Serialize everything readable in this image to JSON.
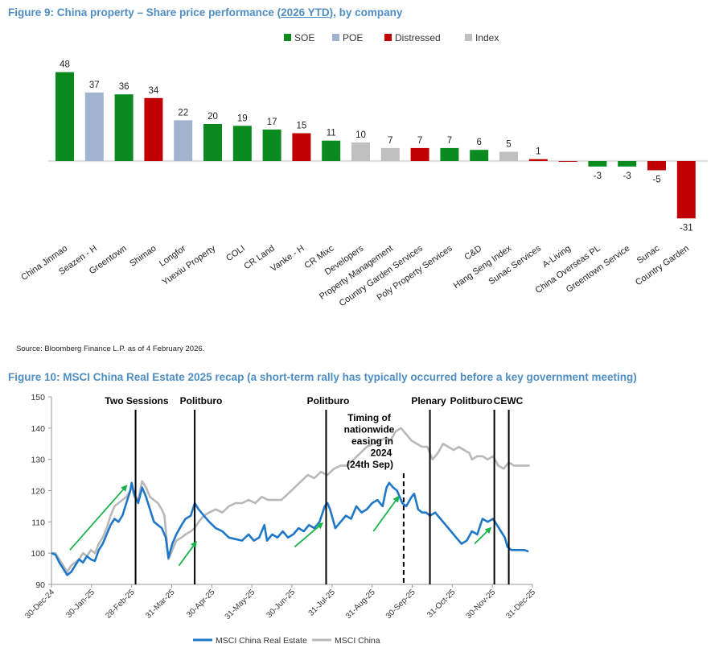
{
  "fig9": {
    "title_pre": "Figure 9: China property – Share price performance (",
    "title_ytd": "2026 YTD",
    "title_post": "), by company",
    "source": "Source: Bloomberg Finance L.P. as of 4 February 2026.",
    "colors": {
      "SOE": "#0a8a1f",
      "POE": "#a1b3cf",
      "Distressed": "#c00000",
      "Index": "#c0c0c0"
    }
  },
  "fig10": {
    "title": "Figure 10: MSCI China Real Estate 2025 recap (a short-term rally has typically occurred before a key government meeting)",
    "annotation_lines": [
      "Timing of",
      "nationwide",
      "easing in",
      "2024",
      "(24th Sep)"
    ]
  },
  "chart_data": [
    {
      "type": "bar",
      "title": "China property – Share price performance (2026 YTD), by company",
      "legend": [
        "SOE",
        "POE",
        "Distressed",
        "Index"
      ],
      "legend_position": "top",
      "categories": [
        "China Jinmao",
        "Seazen - H",
        "Greentown",
        "Shimao",
        "Longfor",
        "Yuexiu Property",
        "COLI",
        "CR Land",
        "Vanke - H",
        "CR Mixc",
        "Developers",
        "Property Management",
        "Country Garden Services",
        "Poly Property Services",
        "C&D",
        "Hang Seng Index",
        "Sunac Services",
        "A-Living",
        "China Overseas PL",
        "Greentown Service",
        "Sunac",
        "Country Garden"
      ],
      "labels": [
        "48",
        "37",
        "36",
        "34",
        "22",
        "20",
        "19",
        "17",
        "15",
        "11",
        "10",
        "7",
        "7",
        "7",
        "6",
        "5",
        "1",
        "",
        "-3",
        "-3",
        "-5",
        "-31"
      ],
      "values": [
        48,
        37,
        36,
        34,
        22,
        20,
        19,
        17,
        15,
        11,
        10,
        7,
        7,
        7,
        6,
        5,
        1,
        -0.4,
        -3,
        -3,
        -5,
        -31
      ],
      "groups": [
        "SOE",
        "POE",
        "SOE",
        "Distressed",
        "POE",
        "SOE",
        "SOE",
        "SOE",
        "Distressed",
        "SOE",
        "Index",
        "Index",
        "Distressed",
        "SOE",
        "SOE",
        "Index",
        "Distressed",
        "Distressed",
        "SOE",
        "SOE",
        "Distressed",
        "Distressed"
      ],
      "ylim": [
        -34,
        52
      ]
    },
    {
      "type": "line",
      "title": "MSCI China Real Estate 2025 recap",
      "x_ticks": [
        "30-Dec-24",
        "30-Jan-25",
        "28-Feb-25",
        "31-Mar-25",
        "30-Apr-25",
        "31-May-25",
        "30-Jun-25",
        "31-Jul-25",
        "31-Aug-25",
        "30-Sep-25",
        "31-Oct-25",
        "30-Nov-25",
        "31-Dec-25"
      ],
      "y_ticks": [
        "90",
        "100",
        "110",
        "120",
        "130",
        "140",
        "150"
      ],
      "ylim": [
        90,
        150
      ],
      "xlim": [
        0,
        366
      ],
      "series": [
        {
          "name": "MSCI China Real Estate",
          "color": "#1f77c8",
          "points": [
            [
              0,
              100
            ],
            [
              3,
              99.5
            ],
            [
              6,
              97
            ],
            [
              9,
              95
            ],
            [
              12,
              93
            ],
            [
              15,
              94
            ],
            [
              18,
              96
            ],
            [
              21,
              98
            ],
            [
              24,
              97
            ],
            [
              27,
              99
            ],
            [
              30,
              98
            ],
            [
              33,
              97.5
            ],
            [
              36,
              101
            ],
            [
              39,
              103
            ],
            [
              42,
              106
            ],
            [
              45,
              109
            ],
            [
              48,
              111
            ],
            [
              51,
              110
            ],
            [
              54,
              112
            ],
            [
              57,
              116
            ],
            [
              60,
              120
            ],
            [
              61,
              122.5
            ],
            [
              63,
              119
            ],
            [
              66,
              116
            ],
            [
              69,
              121
            ],
            [
              72,
              118
            ],
            [
              75,
              114
            ],
            [
              78,
              110
            ],
            [
              81,
              109
            ],
            [
              84,
              108
            ],
            [
              87,
              105
            ],
            [
              89,
              98.5
            ],
            [
              92,
              103
            ],
            [
              95,
              106
            ],
            [
              99,
              109
            ],
            [
              102,
              111
            ],
            [
              106,
              112
            ],
            [
              109,
              116
            ],
            [
              112,
              114
            ],
            [
              116,
              112
            ],
            [
              120,
              110
            ],
            [
              125,
              108
            ],
            [
              130,
              107
            ],
            [
              135,
              105
            ],
            [
              140,
              104.5
            ],
            [
              145,
              104
            ],
            [
              150,
              106
            ],
            [
              154,
              104
            ],
            [
              158,
              105
            ],
            [
              162,
              109
            ],
            [
              164,
              104
            ],
            [
              168,
              106
            ],
            [
              172,
              105
            ],
            [
              176,
              107
            ],
            [
              180,
              105
            ],
            [
              184,
              106
            ],
            [
              188,
              108
            ],
            [
              192,
              107
            ],
            [
              196,
              109
            ],
            [
              200,
              108
            ],
            [
              204,
              110
            ],
            [
              208,
              115
            ],
            [
              210,
              116
            ],
            [
              212,
              114
            ],
            [
              214,
              111
            ],
            [
              216,
              108
            ],
            [
              220,
              110
            ],
            [
              224,
              112
            ],
            [
              228,
              111
            ],
            [
              232,
              115
            ],
            [
              236,
              113
            ],
            [
              240,
              114
            ],
            [
              244,
              116
            ],
            [
              248,
              117
            ],
            [
              252,
              115
            ],
            [
              255,
              121
            ],
            [
              257,
              122.5
            ],
            [
              260,
              121
            ],
            [
              263,
              120
            ],
            [
              267,
              116
            ],
            [
              270,
              115
            ],
            [
              274,
              118
            ],
            [
              276,
              119
            ],
            [
              279,
              114
            ],
            [
              282,
              113
            ],
            [
              285,
              113
            ],
            [
              288,
              112
            ],
            [
              292,
              113
            ],
            [
              296,
              111
            ],
            [
              300,
              109
            ],
            [
              304,
              107
            ],
            [
              308,
              105
            ],
            [
              312,
              103
            ],
            [
              316,
              104
            ],
            [
              320,
              107
            ],
            [
              324,
              106
            ],
            [
              328,
              111
            ],
            [
              332,
              110
            ],
            [
              336,
              111
            ],
            [
              339,
              109
            ],
            [
              342,
              107
            ],
            [
              345,
              105
            ],
            [
              347,
              102
            ],
            [
              350,
              101
            ],
            [
              355,
              101
            ],
            [
              360,
              101
            ],
            [
              363,
              100.5
            ]
          ]
        },
        {
          "name": "MSCI China",
          "color": "#b8b8b8",
          "points": [
            [
              0,
              100
            ],
            [
              3,
              100
            ],
            [
              6,
              98
            ],
            [
              9,
              96
            ],
            [
              12,
              94
            ],
            [
              15,
              96
            ],
            [
              18,
              97
            ],
            [
              21,
              98
            ],
            [
              24,
              100
            ],
            [
              27,
              99
            ],
            [
              30,
              101
            ],
            [
              33,
              100
            ],
            [
              36,
              103
            ],
            [
              39,
              105
            ],
            [
              42,
              108
            ],
            [
              45,
              112
            ],
            [
              48,
              115
            ],
            [
              51,
              116
            ],
            [
              54,
              117
            ],
            [
              57,
              118
            ],
            [
              60,
              120
            ],
            [
              61,
              122
            ],
            [
              63,
              118
            ],
            [
              66,
              117
            ],
            [
              69,
              123
            ],
            [
              72,
              121
            ],
            [
              75,
              118
            ],
            [
              78,
              117
            ],
            [
              81,
              116
            ],
            [
              84,
              114
            ],
            [
              86,
              112
            ],
            [
              89,
              98
            ],
            [
              92,
              101
            ],
            [
              95,
              104
            ],
            [
              99,
              105
            ],
            [
              102,
              106
            ],
            [
              106,
              107
            ],
            [
              109,
              108
            ],
            [
              112,
              110
            ],
            [
              116,
              112
            ],
            [
              120,
              113
            ],
            [
              125,
              114
            ],
            [
              130,
              113
            ],
            [
              135,
              115
            ],
            [
              140,
              116
            ],
            [
              145,
              116
            ],
            [
              150,
              117
            ],
            [
              155,
              116
            ],
            [
              160,
              118
            ],
            [
              165,
              117
            ],
            [
              170,
              117
            ],
            [
              175,
              117
            ],
            [
              180,
              119
            ],
            [
              185,
              121
            ],
            [
              190,
              123
            ],
            [
              195,
              125
            ],
            [
              200,
              124
            ],
            [
              205,
              126
            ],
            [
              210,
              125
            ],
            [
              215,
              127
            ],
            [
              220,
              128
            ],
            [
              225,
              128
            ],
            [
              230,
              130
            ],
            [
              235,
              132
            ],
            [
              240,
              134
            ],
            [
              245,
              135
            ],
            [
              250,
              136
            ],
            [
              255,
              137
            ],
            [
              258,
              136
            ],
            [
              262,
              139
            ],
            [
              266,
              140
            ],
            [
              270,
              138
            ],
            [
              274,
              136
            ],
            [
              278,
              135
            ],
            [
              282,
              134
            ],
            [
              286,
              134
            ],
            [
              290,
              130
            ],
            [
              294,
              132
            ],
            [
              298,
              135
            ],
            [
              302,
              134
            ],
            [
              306,
              133
            ],
            [
              310,
              134
            ],
            [
              314,
              133
            ],
            [
              318,
              132
            ],
            [
              320,
              130
            ],
            [
              324,
              131
            ],
            [
              328,
              131
            ],
            [
              332,
              130
            ],
            [
              336,
              131
            ],
            [
              340,
              128
            ],
            [
              344,
              127
            ],
            [
              348,
              129
            ],
            [
              352,
              128
            ],
            [
              356,
              128
            ],
            [
              360,
              128
            ],
            [
              364,
              128
            ]
          ]
        }
      ],
      "events": [
        {
          "label": "Two Sessions",
          "x": 64,
          "style": "solid"
        },
        {
          "label": "Politburo",
          "x": 109,
          "style": "solid"
        },
        {
          "label": "Politburo",
          "x": 209,
          "style": "solid"
        },
        {
          "label": "Timing of nationwide easing in 2024 (24th Sep)",
          "x": 268,
          "style": "dashed"
        },
        {
          "label": "Plenary",
          "x": 288,
          "style": "solid"
        },
        {
          "label": "Politburo",
          "x": 337,
          "style": "solid"
        },
        {
          "label": "CEWC",
          "x": 348,
          "style": "solid"
        }
      ],
      "rally_arrows": [
        {
          "from": [
            14,
            101
          ],
          "to": [
            57,
            121.5
          ]
        },
        {
          "from": [
            97,
            96
          ],
          "to": [
            110,
            103.5
          ]
        },
        {
          "from": [
            185,
            102
          ],
          "to": [
            206,
            109.5
          ]
        },
        {
          "from": [
            245,
            107
          ],
          "to": [
            264,
            118
          ]
        },
        {
          "from": [
            322,
            103
          ],
          "to": [
            334,
            108
          ]
        }
      ],
      "legend_position": "bottom"
    }
  ]
}
